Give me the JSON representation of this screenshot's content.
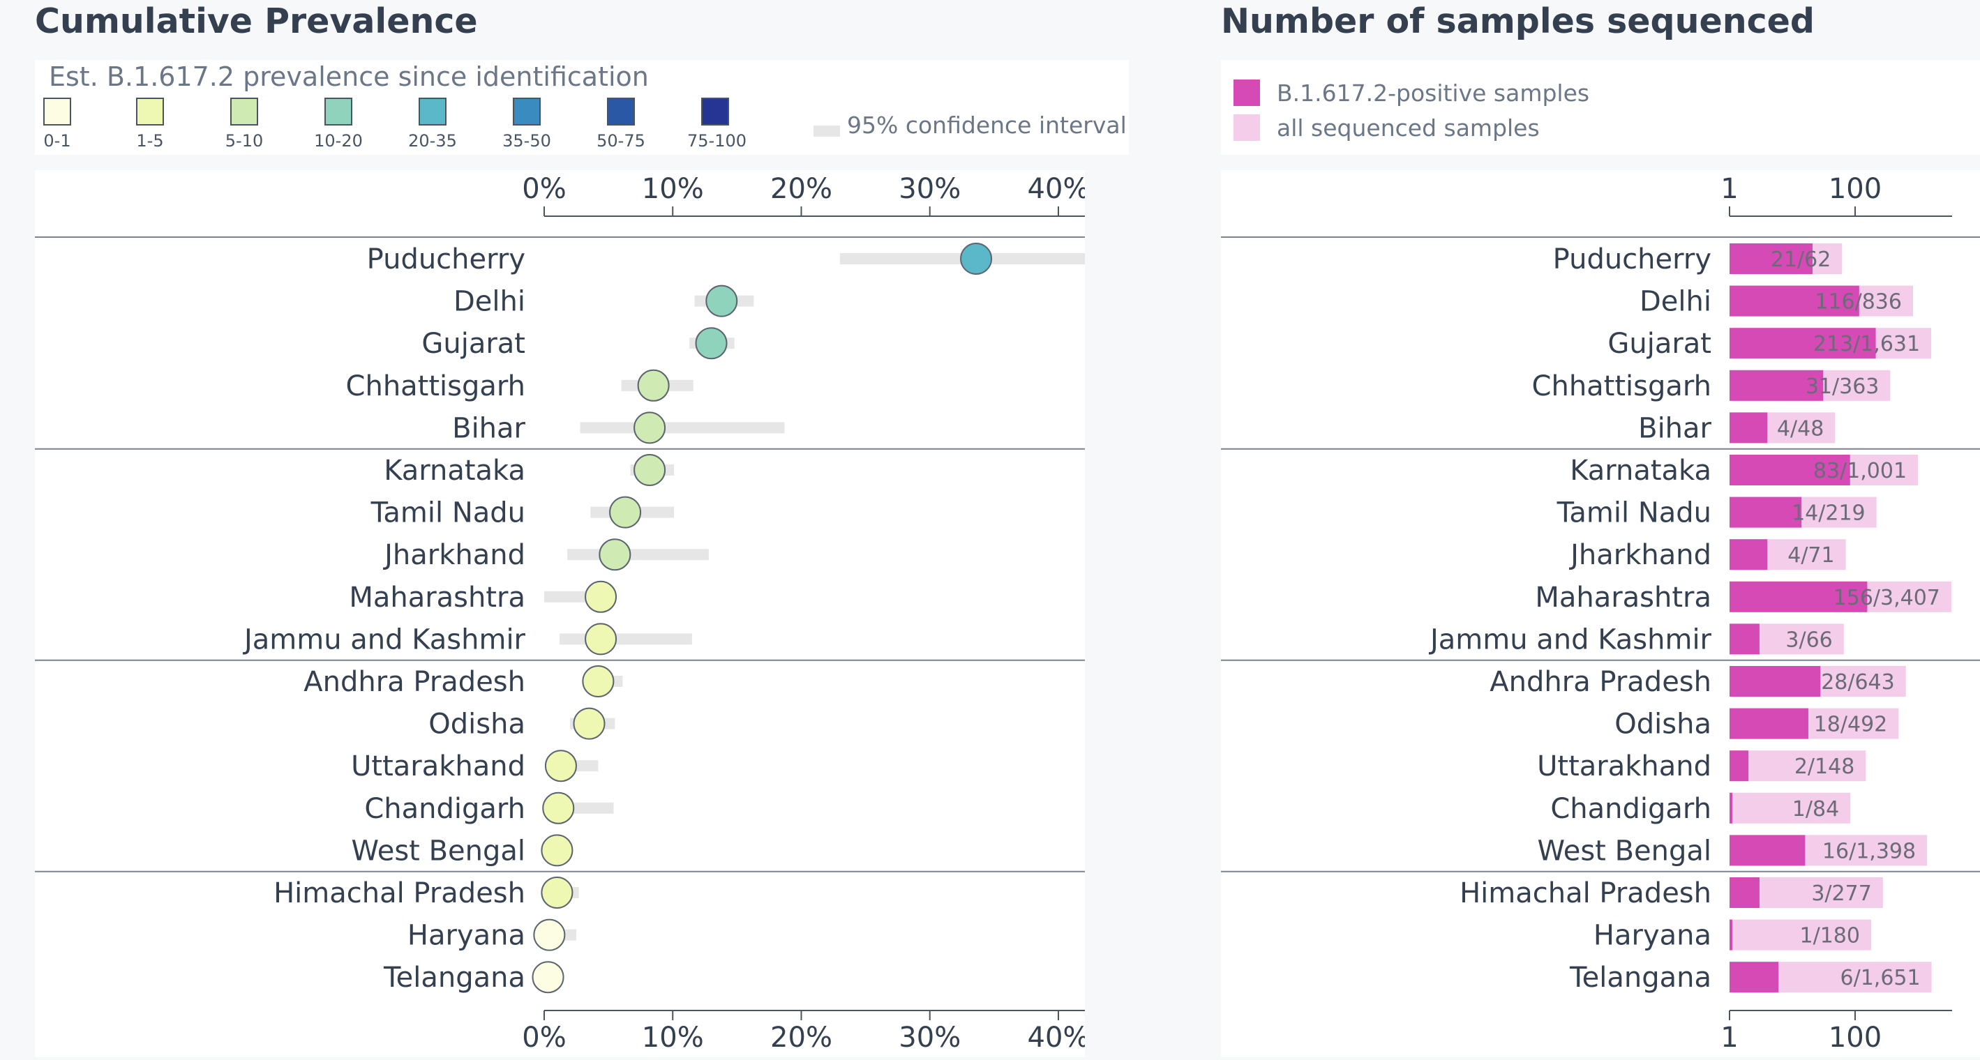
{
  "left_panel": {
    "title": "Cumulative Prevalence",
    "legend_title": "Est. B.1.617.2 prevalence since identification",
    "ci_label": "95% confidence interval",
    "bins": [
      {
        "label": "0-1",
        "color": "#fdfde4"
      },
      {
        "label": "1-5",
        "color": "#eef8b2"
      },
      {
        "label": "5-10",
        "color": "#cfeab3"
      },
      {
        "label": "10-20",
        "color": "#8fd3bc"
      },
      {
        "label": "20-35",
        "color": "#5ab8c8"
      },
      {
        "label": "35-50",
        "color": "#3a8cc0"
      },
      {
        "label": "50-75",
        "color": "#2a58a4"
      },
      {
        "label": "75-100",
        "color": "#263494"
      }
    ],
    "ci_color": "#e6e6e6"
  },
  "right_panel": {
    "title": "Number of samples sequenced",
    "legend_positive": "B.1.617.2-positive samples",
    "legend_all": "all sequenced samples",
    "positive_color": "#d54ab4",
    "all_color": "#f3cdea"
  },
  "chart_data": [
    {
      "type": "scatter",
      "title": "Cumulative Prevalence",
      "axis": {
        "ticks": [
          0,
          10,
          20,
          30,
          40
        ],
        "tick_labels": [
          "0%",
          "10%",
          "20%",
          "30%",
          "40%"
        ],
        "range": [
          0,
          46
        ]
      },
      "categories": [
        "Puducherry",
        "Delhi",
        "Gujarat",
        "Chhattisgarh",
        "Bihar",
        "Karnataka",
        "Tamil Nadu",
        "Jharkhand",
        "Maharashtra",
        "Jammu and Kashmir",
        "Andhra Pradesh",
        "Odisha",
        "Uttarakhand",
        "Chandigarh",
        "West Bengal",
        "Himachal Pradesh",
        "Haryana",
        "Telangana"
      ],
      "values": [
        33.6,
        13.8,
        13.0,
        8.5,
        8.2,
        8.2,
        6.3,
        5.5,
        4.4,
        4.4,
        4.2,
        3.5,
        1.3,
        1.1,
        1.0,
        1.0,
        0.4,
        0.3
      ],
      "ci_low": [
        23.0,
        11.7,
        11.3,
        6.0,
        2.8,
        6.7,
        3.6,
        1.8,
        0.0,
        1.2,
        3.4,
        2.0,
        0.3,
        0.0,
        0.3,
        0.4,
        0.0,
        0.0
      ],
      "ci_high": [
        46.0,
        16.3,
        14.8,
        11.6,
        18.7,
        10.1,
        10.1,
        12.8,
        4.9,
        11.5,
        6.1,
        5.5,
        4.2,
        5.4,
        1.8,
        2.7,
        2.5,
        0.6
      ],
      "group_dividers_after": [
        4,
        9,
        14
      ],
      "grid": false,
      "legend_position": "top"
    },
    {
      "type": "bar",
      "title": "Number of samples sequenced",
      "scale": "log",
      "axis": {
        "ticks": [
          1,
          100
        ],
        "tick_labels": [
          "1",
          "100"
        ]
      },
      "categories": [
        "Puducherry",
        "Delhi",
        "Gujarat",
        "Chhattisgarh",
        "Bihar",
        "Karnataka",
        "Tamil Nadu",
        "Jharkhand",
        "Maharashtra",
        "Jammu and Kashmir",
        "Andhra Pradesh",
        "Odisha",
        "Uttarakhand",
        "Chandigarh",
        "West Bengal",
        "Himachal Pradesh",
        "Haryana",
        "Telangana"
      ],
      "series": [
        {
          "name": "B.1.617.2-positive samples",
          "values": [
            21,
            116,
            213,
            31,
            4,
            83,
            14,
            4,
            156,
            3,
            28,
            18,
            2,
            1,
            16,
            3,
            1,
            6
          ]
        },
        {
          "name": "all sequenced samples",
          "values": [
            62,
            836,
            1631,
            363,
            48,
            1001,
            219,
            71,
            3407,
            66,
            643,
            492,
            148,
            84,
            1398,
            277,
            180,
            1651
          ]
        }
      ],
      "data_labels": [
        "21/62",
        "116/836",
        "213/1,631",
        "31/363",
        "4/48",
        "83/1,001",
        "14/219",
        "4/71",
        "156/3,407",
        "3/66",
        "28/643",
        "18/492",
        "2/148",
        "1/84",
        "16/1,398",
        "3/277",
        "1/180",
        "6/1,651"
      ],
      "group_dividers_after": [
        4,
        9,
        14
      ],
      "grid": false,
      "legend_position": "top"
    }
  ]
}
